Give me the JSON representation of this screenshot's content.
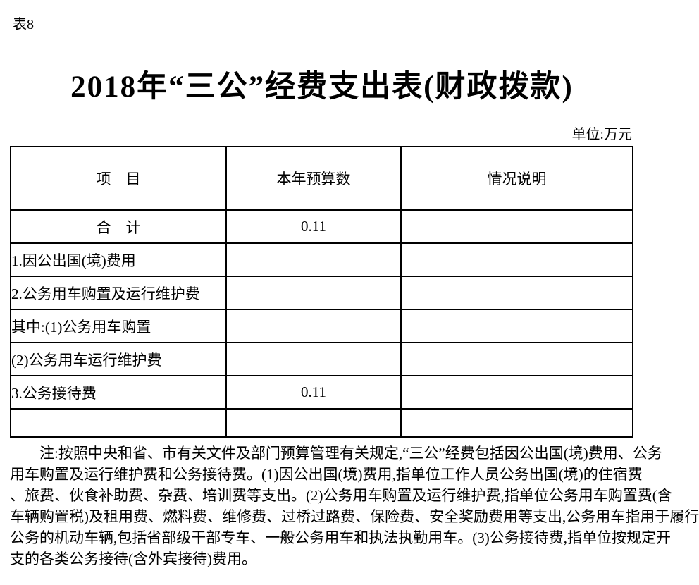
{
  "page": {
    "table_label": "表8",
    "title": "2018年“三公”经费支出表(财政拨款)",
    "unit_label": "单位:万元"
  },
  "table": {
    "headers": {
      "item": "项　目",
      "budget": "本年预算数",
      "explanation": "情况说明"
    },
    "rows": [
      {
        "item": "合　计",
        "budget": "0.11",
        "explanation": ""
      },
      {
        "item": "1.因公出国(境)费用",
        "budget": "",
        "explanation": ""
      },
      {
        "item": "2.公务用车购置及运行维护费",
        "budget": "",
        "explanation": ""
      },
      {
        "item": "其中:(1)公务用车购置",
        "budget": "",
        "explanation": ""
      },
      {
        "item": "(2)公务用车运行维护费",
        "budget": "",
        "explanation": ""
      },
      {
        "item": "3.公务接待费",
        "budget": "0.11",
        "explanation": ""
      },
      {
        "item": "",
        "budget": "",
        "explanation": ""
      }
    ]
  },
  "note": {
    "lines": [
      "注:按照中央和省、市有关文件及部门预算管理有关规定,“三公”经费包括因公出国(境)费用、公务",
      "用车购置及运行维护费和公务接待费。(1)因公出国(境)费用,指单位工作人员公务出国(境)的住宿费",
      "、旅费、伙食补助费、杂费、培训费等支出。(2)公务用车购置及运行维护费,指单位公务用车购置费(含",
      "车辆购置税)及租用费、燃料费、维修费、过桥过路费、保险费、安全奖励费用等支出,公务用车指用于履行",
      "公务的机动车辆,包括省部级干部专车、一般公务用车和执法执勤用车。(3)公务接待费,指单位按规定开",
      "支的各类公务接待(含外宾接待)费用。"
    ]
  }
}
